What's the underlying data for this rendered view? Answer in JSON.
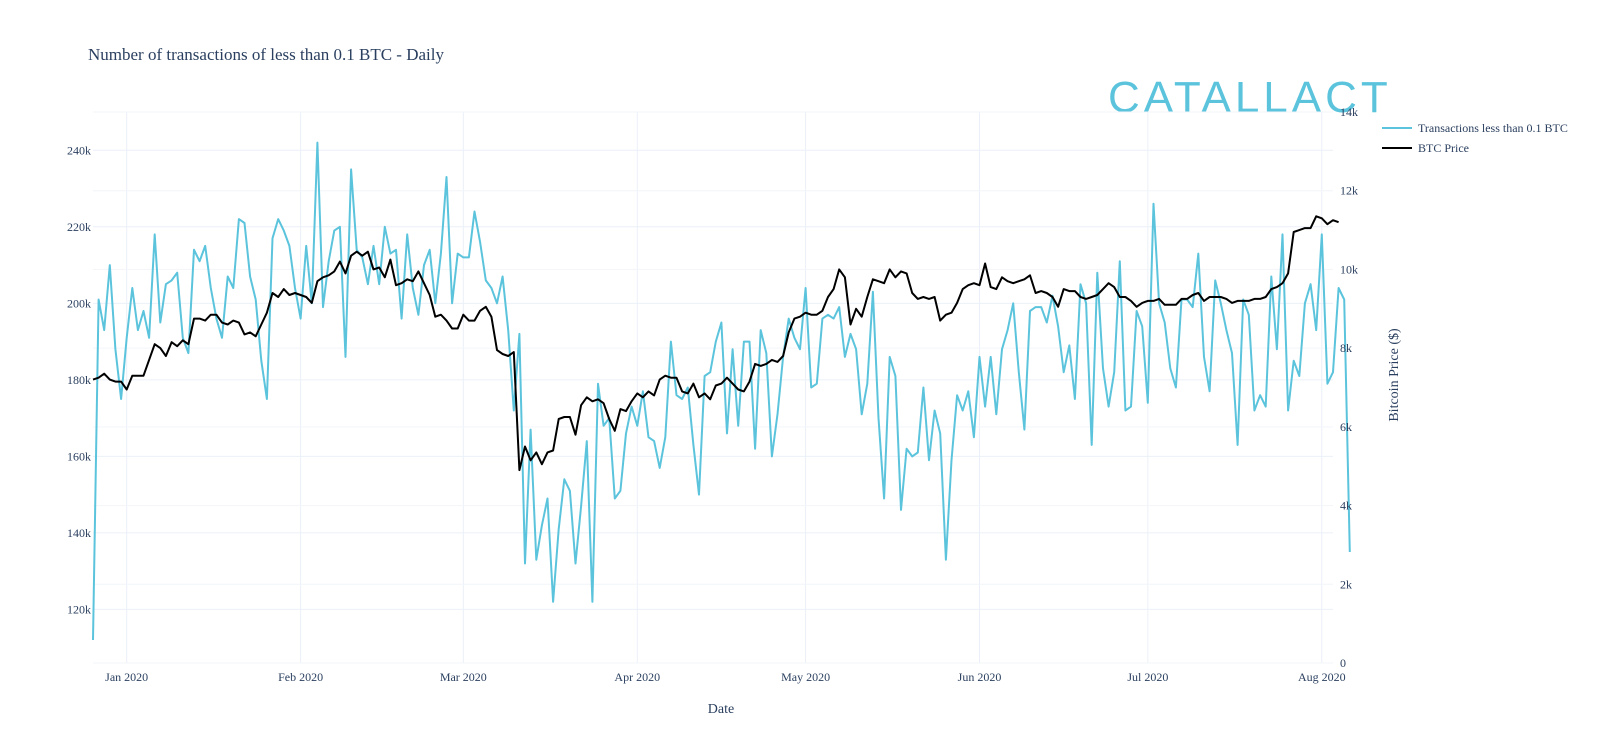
{
  "chart_data": {
    "type": "line",
    "title": "Number of transactions of less than 0.1 BTC - Daily",
    "xlabel": "Date",
    "ylabel": "",
    "y2label": "Bitcoin Price ($)",
    "x_start": "2019-12-26",
    "x_end": "2020-08-03",
    "xlim_days": [
      0,
      221
    ],
    "ylim": [
      106000,
      250000
    ],
    "y2lim": [
      0,
      14000
    ],
    "x_ticks": [
      {
        "label": "Jan 2020",
        "day": 6
      },
      {
        "label": "Feb 2020",
        "day": 37
      },
      {
        "label": "Mar 2020",
        "day": 66
      },
      {
        "label": "Apr 2020",
        "day": 97
      },
      {
        "label": "May 2020",
        "day": 127
      },
      {
        "label": "Jun 2020",
        "day": 158
      },
      {
        "label": "Jul 2020",
        "day": 188
      },
      {
        "label": "Aug 2020",
        "day": 219
      }
    ],
    "y_ticks": [
      {
        "label": "120k",
        "value": 120000
      },
      {
        "label": "140k",
        "value": 140000
      },
      {
        "label": "160k",
        "value": 160000
      },
      {
        "label": "180k",
        "value": 180000
      },
      {
        "label": "200k",
        "value": 200000
      },
      {
        "label": "220k",
        "value": 220000
      },
      {
        "label": "240k",
        "value": 240000
      }
    ],
    "y2_ticks": [
      {
        "label": "0",
        "value": 0
      },
      {
        "label": "2k",
        "value": 2000
      },
      {
        "label": "4k",
        "value": 4000
      },
      {
        "label": "6k",
        "value": 6000
      },
      {
        "label": "8k",
        "value": 8000
      },
      {
        "label": "10k",
        "value": 10000
      },
      {
        "label": "12k",
        "value": 12000
      },
      {
        "label": "14k",
        "value": 14000
      }
    ],
    "legend_position": "top-right",
    "series": [
      {
        "name": "Transactions less than 0.1 BTC",
        "axis": "left",
        "color": "#5bc4dc",
        "values": [
          112000,
          201000,
          193000,
          210000,
          188000,
          175000,
          191000,
          204000,
          193000,
          198000,
          191000,
          218000,
          195000,
          205000,
          206000,
          208000,
          191000,
          187000,
          214000,
          211000,
          215000,
          204000,
          196000,
          191000,
          207000,
          204000,
          222000,
          221000,
          207000,
          201000,
          185000,
          175000,
          217000,
          222000,
          219000,
          215000,
          204000,
          196000,
          215000,
          200000,
          242000,
          199000,
          211000,
          219000,
          220000,
          186000,
          235000,
          214000,
          212000,
          205000,
          215000,
          205000,
          220000,
          213000,
          214000,
          196000,
          218000,
          204000,
          197000,
          210000,
          214000,
          200000,
          213000,
          233000,
          200000,
          213000,
          212000,
          212000,
          224000,
          216000,
          206000,
          204000,
          200000,
          207000,
          193000,
          172000,
          192000,
          132000,
          167000,
          133000,
          142000,
          149000,
          122000,
          141000,
          154000,
          151000,
          132000,
          147000,
          164000,
          122000,
          179000,
          168000,
          170000,
          149000,
          151000,
          166000,
          173000,
          168000,
          177000,
          165000,
          164000,
          157000,
          165000,
          190000,
          176000,
          175000,
          178000,
          163000,
          150000,
          181000,
          182000,
          190000,
          195000,
          166000,
          188000,
          168000,
          190000,
          190000,
          162000,
          193000,
          187000,
          160000,
          171000,
          186000,
          196000,
          191000,
          188000,
          204000,
          178000,
          179000,
          196000,
          197000,
          196000,
          199000,
          186000,
          192000,
          188000,
          171000,
          179000,
          203000,
          170000,
          149000,
          186000,
          181000,
          146000,
          162000,
          160000,
          161000,
          178000,
          159000,
          172000,
          166000,
          133000,
          159000,
          176000,
          172000,
          177000,
          165000,
          186000,
          173000,
          186000,
          171000,
          188000,
          193000,
          200000,
          182000,
          167000,
          198000,
          199000,
          199000,
          195000,
          202000,
          194000,
          182000,
          189000,
          175000,
          205000,
          200000,
          163000,
          208000,
          183000,
          173000,
          182000,
          211000,
          172000,
          173000,
          198000,
          194000,
          174000,
          226000,
          200000,
          195000,
          183000,
          178000,
          201000,
          201000,
          199000,
          213000,
          186000,
          177000,
          206000,
          200000,
          193000,
          187000,
          163000,
          201000,
          197000,
          172000,
          176000,
          173000,
          207000,
          188000,
          218000,
          172000,
          185000,
          181000,
          200000,
          205000,
          193000,
          218000,
          179000,
          182000,
          204000,
          201000,
          135000
        ]
      },
      {
        "name": "BTC Price",
        "axis": "right",
        "color": "#000000",
        "values": [
          7200,
          7250,
          7350,
          7200,
          7150,
          7150,
          6950,
          7300,
          7300,
          7300,
          7700,
          8100,
          8000,
          7800,
          8150,
          8050,
          8200,
          8100,
          8750,
          8750,
          8700,
          8850,
          8850,
          8650,
          8600,
          8700,
          8650,
          8350,
          8400,
          8300,
          8600,
          8900,
          9400,
          9300,
          9500,
          9350,
          9400,
          9350,
          9300,
          9150,
          9700,
          9800,
          9850,
          9950,
          10200,
          9900,
          10350,
          10450,
          10350,
          10450,
          10000,
          10050,
          9800,
          10250,
          9600,
          9650,
          9750,
          9700,
          9950,
          9650,
          9350,
          8800,
          8850,
          8700,
          8500,
          8500,
          8850,
          8700,
          8700,
          8950,
          9050,
          8800,
          7950,
          7850,
          7800,
          7900,
          4900,
          5500,
          5150,
          5350,
          5050,
          5350,
          5400,
          6200,
          6250,
          6250,
          5800,
          6550,
          6750,
          6650,
          6700,
          6600,
          6200,
          5900,
          6450,
          6400,
          6650,
          6850,
          6750,
          6900,
          6800,
          7200,
          7300,
          7250,
          7250,
          6900,
          6850,
          7100,
          6750,
          6850,
          6700,
          7050,
          7100,
          7250,
          7100,
          6950,
          6900,
          7150,
          7600,
          7550,
          7600,
          7700,
          7650,
          7800,
          8400,
          8750,
          8800,
          8900,
          8850,
          8850,
          8950,
          9300,
          9500,
          10000,
          9800,
          8600,
          9000,
          8800,
          9300,
          9750,
          9700,
          9650,
          10000,
          9800,
          9950,
          9900,
          9400,
          9250,
          9300,
          9250,
          9300,
          8700,
          8850,
          8900,
          9150,
          9500,
          9600,
          9650,
          9600,
          10150,
          9550,
          9500,
          9800,
          9700,
          9650,
          9700,
          9750,
          9850,
          9400,
          9450,
          9400,
          9300,
          9050,
          9500,
          9450,
          9450,
          9300,
          9250,
          9300,
          9350,
          9500,
          9650,
          9550,
          9300,
          9300,
          9200,
          9050,
          9150,
          9200,
          9200,
          9250,
          9100,
          9100,
          9100,
          9250,
          9250,
          9350,
          9400,
          9200,
          9300,
          9300,
          9300,
          9250,
          9150,
          9200,
          9200,
          9200,
          9250,
          9250,
          9300,
          9500,
          9550,
          9650,
          9900,
          10950,
          11000,
          11050,
          11050,
          11350,
          11300,
          11150,
          11250,
          11200
        ]
      }
    ]
  },
  "logo": {
    "text": "CATALLACT",
    "color": "#5bc4dc"
  }
}
